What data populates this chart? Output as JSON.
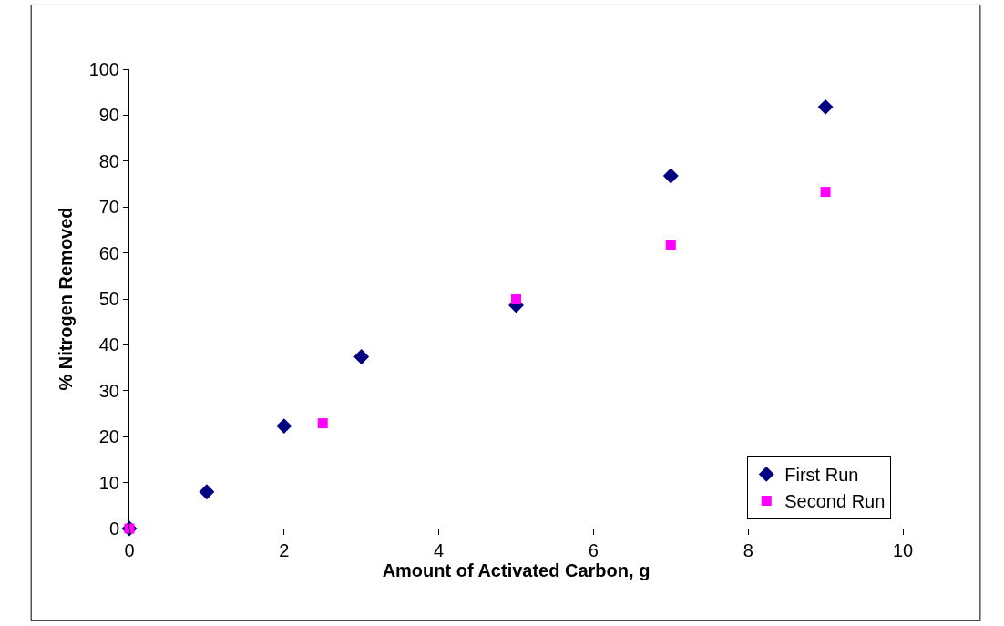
{
  "chart_data": {
    "type": "scatter",
    "xlabel": "Amount of Activated Carbon, g",
    "ylabel": "% Nitrogen Removed",
    "xlim": [
      0,
      10
    ],
    "xticks": [
      0,
      2,
      4,
      6,
      8,
      10
    ],
    "ylim": [
      0,
      100
    ],
    "yticks": [
      0,
      10,
      20,
      30,
      40,
      50,
      60,
      70,
      80,
      90,
      100
    ],
    "legend": "bottom right",
    "series": [
      {
        "name": "First Run",
        "color": "#000080",
        "marker": "diamond",
        "x": [
          0,
          1,
          2,
          3,
          5,
          7,
          9
        ],
        "values": [
          0,
          8,
          22.3,
          37.4,
          48.6,
          76.8,
          91.8
        ]
      },
      {
        "name": "Second Run",
        "color": "#ff00ff",
        "marker": "square",
        "x": [
          0,
          2.5,
          5,
          7,
          9
        ],
        "values": [
          0,
          22.9,
          49.9,
          61.8,
          73.3
        ]
      }
    ]
  }
}
